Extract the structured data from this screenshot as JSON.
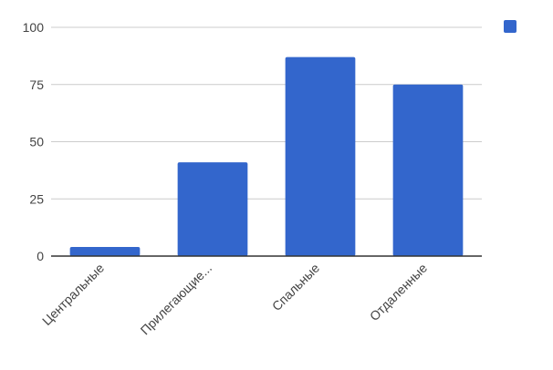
{
  "chart_data": {
    "type": "bar",
    "title": "",
    "xlabel": "",
    "ylabel": "",
    "categories": [
      "Центральные",
      "Прилегающие...",
      "Спальные",
      "Отдаленные"
    ],
    "values": [
      4,
      41,
      87,
      75
    ],
    "ylim": [
      0,
      100
    ],
    "yticks": [
      "0",
      "25",
      "50",
      "75",
      "100"
    ],
    "grid": true,
    "legend_placement": "top-right",
    "colors": {
      "bar": "#3366cc",
      "grid": "#cccccc",
      "axis": "#333333",
      "tick_text": "#444444"
    }
  }
}
